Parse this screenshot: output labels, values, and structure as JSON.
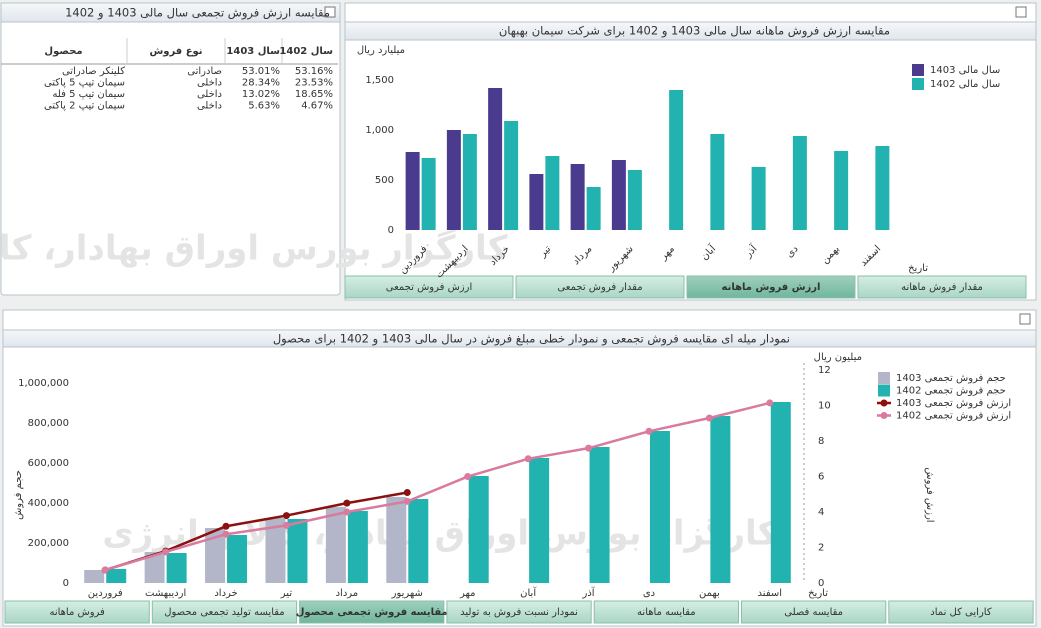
{
  "left_panel": {
    "title": "مقایسه ارزش فروش تجمعی سال مالی 1403 و 1402",
    "columns": [
      "محصول",
      "نوع فروش",
      "سال 1403",
      "سال 1402"
    ],
    "rows": [
      [
        "کلینکر صادراتی",
        "صادراتی",
        "53.01%",
        "53.16%"
      ],
      [
        "سیمان تیپ 5 پاکتی",
        "داخلی",
        "28.34%",
        "23.53%"
      ],
      [
        "سیمان تیپ 5 فله",
        "داخلی",
        "13.02%",
        "18.65%"
      ],
      [
        "سیمان تیپ 2 پاکتی",
        "داخلی",
        "5.63%",
        "4.67%"
      ]
    ]
  },
  "watermark": "کارگزار بورس اوراق بهادار، کالا و انرژی",
  "tabs_top": [
    "ارزش فروش تجمعی",
    "مقدار فروش تجمعی",
    "ارزش فروش ماهانه",
    "مقدار فروش ماهانه"
  ],
  "tabs_top_active": 2,
  "tabs_bottom": [
    "فروش ماهانه",
    "مقایسه تولید تجمعی محصول",
    "مقایسه فروش تجمعی محصول",
    "نمودار نسبت فروش به تولید",
    "مقایسه ماهانه",
    "مقایسه فصلی",
    "کارایی کل نماد"
  ],
  "tabs_bottom_active": 2,
  "chart_data": [
    {
      "type": "bar",
      "title": "مقایسه ارزش فروش ماهانه سال مالی 1403 و 1402 برای شرکت سیمان بهبهان",
      "y_label": "میلیارد ریال",
      "x_label": "تاریخ",
      "categories": [
        "فروردین",
        "اردیبهشت",
        "خرداد",
        "تیر",
        "مرداد",
        "شهریور",
        "مهر",
        "آبان",
        "آذر",
        "دی",
        "بهمن",
        "اسفند"
      ],
      "series": [
        {
          "name": "سال مالی 1403",
          "color": "#4a3b8f",
          "values": [
            780,
            1000,
            1420,
            560,
            660,
            700,
            null,
            null,
            null,
            null,
            null,
            null
          ]
        },
        {
          "name": "سال مالی 1402",
          "color": "#22b3b0",
          "values": [
            720,
            960,
            1090,
            740,
            430,
            600,
            1400,
            960,
            630,
            940,
            790,
            840
          ]
        }
      ],
      "ylim": [
        0,
        1850
      ],
      "yticks": [
        0,
        500,
        {
          "value": 1000,
          "label": "1,000"
        },
        {
          "value": 1500,
          "label": "1,500"
        }
      ],
      "grid": false
    },
    {
      "type": "combo",
      "title": "نمودار میله ای مقایسه فروش تجمعی و نمودار خطی مبلغ فروش در سال مالی 1403 و 1402 برای محصول",
      "y_label": "حجم فروش",
      "y2_label": "ارزش فروش",
      "y2_unit": "میلیون ریال",
      "x_label": "تاریخ",
      "categories": [
        "فروردین",
        "اردیبهشت",
        "خرداد",
        "تیر",
        "مرداد",
        "شهریور",
        "مهر",
        "آبان",
        "آذر",
        "دی",
        "بهمن",
        "اسفند"
      ],
      "series": [
        {
          "name": "حجم فروش تجمعی 1403",
          "kind": "bar",
          "color": "#b3b6c9",
          "values": [
            65000,
            155000,
            275000,
            325000,
            380000,
            430000,
            null,
            null,
            null,
            null,
            null,
            null
          ]
        },
        {
          "name": "حجم فروش تجمعی 1402",
          "kind": "bar",
          "color": "#22b3b0",
          "values": [
            70000,
            150000,
            240000,
            320000,
            360000,
            420000,
            535000,
            625000,
            680000,
            760000,
            835000,
            905000
          ]
        },
        {
          "name": "ارزش فروش تجمعی 1403",
          "kind": "line",
          "axis": "y2",
          "color": "#8b1010",
          "values": [
            0.73,
            1.8,
            3.2,
            3.8,
            4.5,
            5.1,
            null,
            null,
            null,
            null,
            null,
            null
          ]
        },
        {
          "name": "ارزش فروش تجمعی 1402",
          "kind": "line",
          "axis": "y2",
          "color": "#d97a9e",
          "values": [
            0.73,
            1.75,
            2.75,
            3.25,
            4.0,
            4.6,
            6.0,
            7.0,
            7.6,
            8.55,
            9.3,
            10.15
          ]
        }
      ],
      "ylim": [
        0,
        1100000
      ],
      "yticks": [
        0,
        {
          "value": 200000,
          "label": "200,000"
        },
        {
          "value": 400000,
          "label": "400,000"
        },
        {
          "value": 600000,
          "label": "600,000"
        },
        {
          "value": 800000,
          "label": "800,000"
        },
        {
          "value": 1000000,
          "label": "1,000,000"
        }
      ],
      "y2lim": [
        0,
        12.4
      ],
      "y2ticks": [
        0,
        2,
        4,
        6,
        8,
        10,
        12
      ],
      "grid": false
    }
  ]
}
